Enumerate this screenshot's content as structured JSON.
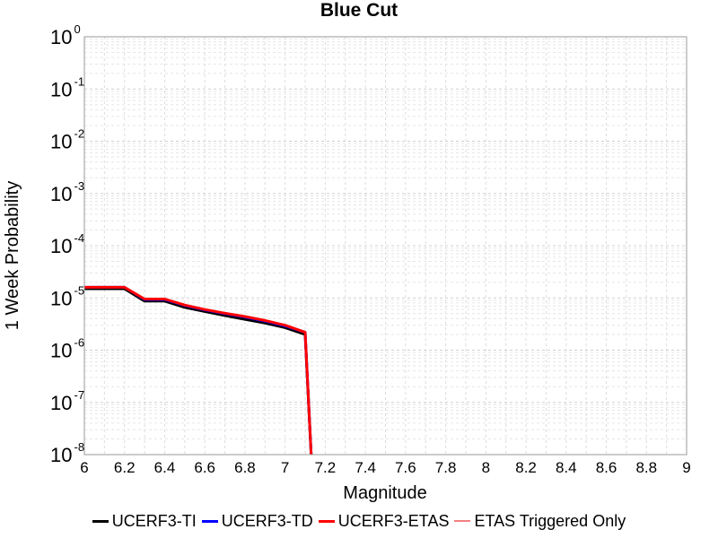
{
  "chart_data": {
    "type": "line",
    "title": "Blue Cut",
    "xlabel": "Magnitude",
    "ylabel": "1 Week Probability",
    "xlim": [
      6,
      9
    ],
    "ylim": [
      1e-08,
      1
    ],
    "yscale": "log",
    "grid": true,
    "legend_position": "bottom",
    "x_ticks": [
      "6",
      "6.2",
      "6.4",
      "6.6",
      "6.8",
      "7",
      "7.2",
      "7.4",
      "7.6",
      "7.8",
      "8",
      "8.2",
      "8.4",
      "8.6",
      "8.8",
      "9"
    ],
    "y_ticks": [
      {
        "base": "10",
        "exp": "0"
      },
      {
        "base": "10",
        "exp": "-1"
      },
      {
        "base": "10",
        "exp": "-2"
      },
      {
        "base": "10",
        "exp": "-3"
      },
      {
        "base": "10",
        "exp": "-4"
      },
      {
        "base": "10",
        "exp": "-5"
      },
      {
        "base": "10",
        "exp": "-6"
      },
      {
        "base": "10",
        "exp": "-7"
      },
      {
        "base": "10",
        "exp": "-8"
      }
    ],
    "series": [
      {
        "name": "UCERF3-TI",
        "color": "#000000",
        "width": 3,
        "x": [
          6.0,
          6.1,
          6.2,
          6.3,
          6.4,
          6.5,
          6.6,
          6.7,
          6.8,
          6.9,
          7.0,
          7.1,
          7.13
        ],
        "y": [
          1.5e-05,
          1.5e-05,
          1.5e-05,
          8.7e-06,
          8.7e-06,
          6.6e-06,
          5.5e-06,
          4.6e-06,
          3.9e-06,
          3.3e-06,
          2.7e-06,
          2e-06,
          1e-08
        ]
      },
      {
        "name": "UCERF3-TD",
        "color": "#0000ff",
        "width": 3,
        "x": [
          6.0,
          6.1,
          6.2,
          6.3,
          6.4,
          6.5,
          6.6,
          6.7,
          6.8,
          6.9,
          7.0,
          7.1,
          7.13
        ],
        "y": [
          1.6e-05,
          1.6e-05,
          1.6e-05,
          9.3e-06,
          9.3e-06,
          7.2e-06,
          5.9e-06,
          5e-06,
          4.3e-06,
          3.6e-06,
          2.9e-06,
          2.2e-06,
          1e-08
        ]
      },
      {
        "name": "UCERF3-ETAS",
        "color": "#ff0000",
        "width": 3,
        "x": [
          6.0,
          6.1,
          6.2,
          6.3,
          6.4,
          6.5,
          6.6,
          6.7,
          6.8,
          6.9,
          7.0,
          7.1,
          7.13
        ],
        "y": [
          1.6e-05,
          1.6e-05,
          1.6e-05,
          9.5e-06,
          9.5e-06,
          7.3e-06,
          6e-06,
          5.1e-06,
          4.4e-06,
          3.7e-06,
          3e-06,
          2.2e-06,
          1e-08
        ]
      },
      {
        "name": "ETAS Triggered Only",
        "color": "#f08080",
        "width": 2,
        "x": [],
        "y": []
      }
    ]
  }
}
